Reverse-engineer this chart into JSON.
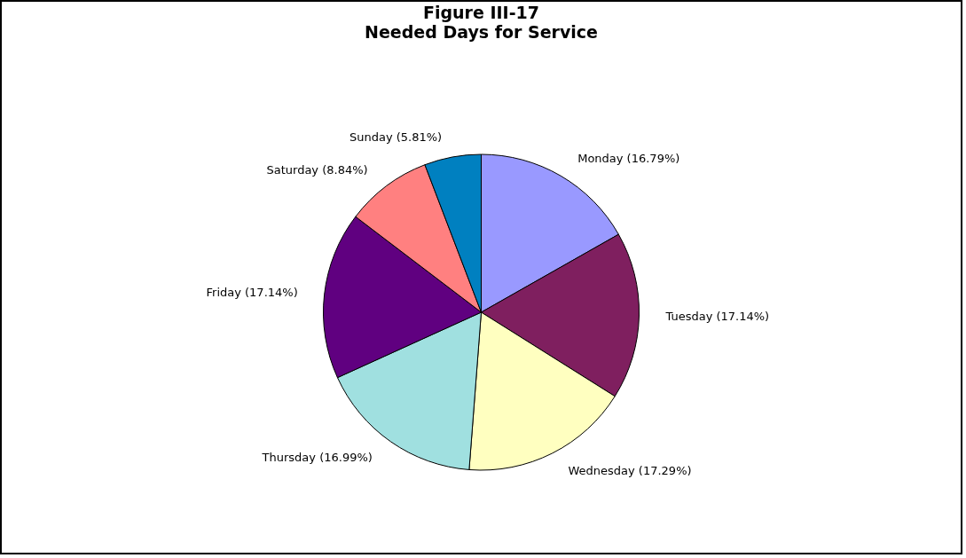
{
  "chart_data": {
    "type": "pie",
    "title": "Figure III-17",
    "subtitle": "Needed Days for Service",
    "categories": [
      "Monday",
      "Tuesday",
      "Wednesday",
      "Thursday",
      "Friday",
      "Saturday",
      "Sunday"
    ],
    "values": [
      16.79,
      17.14,
      17.29,
      16.99,
      17.14,
      8.84,
      5.81
    ],
    "value_labels": [
      "(16.79%)",
      "(17.14%)",
      "(17.29%)",
      "(16.99%)",
      "(17.14%)",
      "(8.84%)",
      "(5.81%)"
    ],
    "colors": [
      "#9999ff",
      "#7f1f5f",
      "#ffffc0",
      "#a0e0e0",
      "#600080",
      "#ff8080",
      "#0080c0"
    ]
  }
}
